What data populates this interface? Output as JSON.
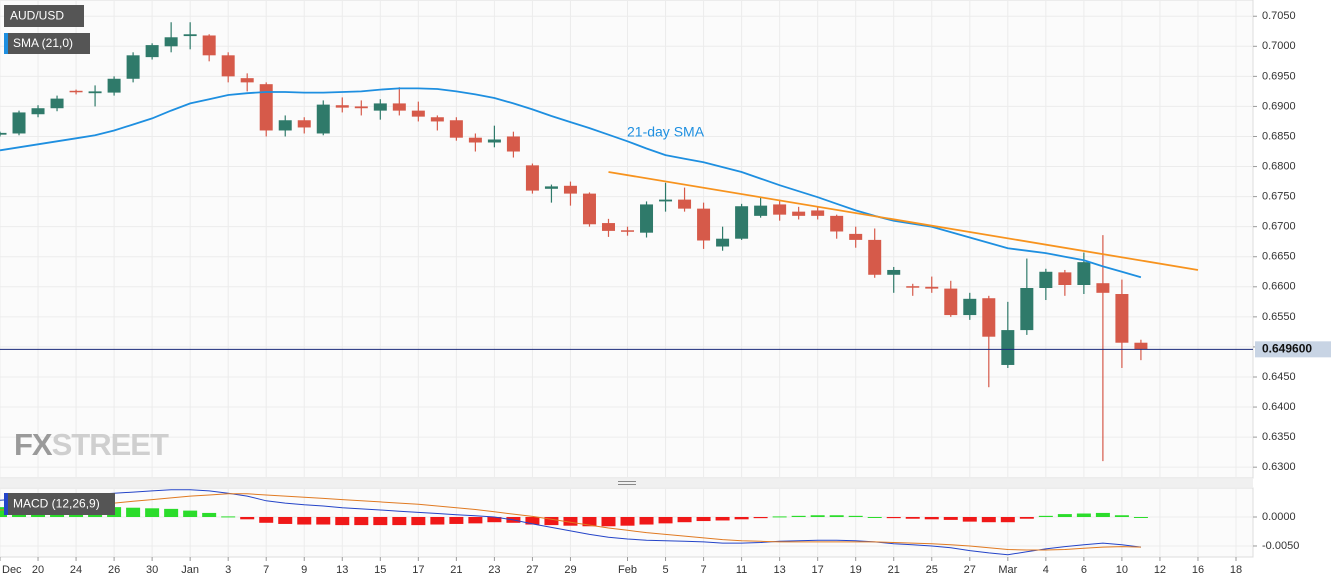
{
  "chart_data": [
    {
      "type": "candlestick",
      "categories": [
        "Dec",
        null,
        "20",
        null,
        "24",
        null,
        "26",
        null,
        "30",
        null,
        "Jan",
        null,
        "3",
        null,
        "7",
        null,
        "9",
        null,
        "13",
        null,
        "15",
        null,
        "17",
        null,
        "21",
        null,
        "23",
        null,
        "27",
        null,
        "29",
        null,
        null,
        "Feb",
        null,
        "5",
        null,
        "7",
        null,
        "11",
        null,
        "13",
        null,
        "17",
        null,
        "19",
        null,
        "21",
        null,
        "25",
        null,
        "27",
        null,
        "Mar",
        null,
        "4",
        null,
        "6",
        null,
        "10",
        null,
        "12",
        null,
        "16",
        null,
        "18"
      ],
      "series": [
        {
          "name": "AUD/USD",
          "up_color": "#2f7a6a",
          "down_color": "#d65a4a",
          "open": [
            0.6853,
            0.6855,
            0.6887,
            0.6897,
            0.6926,
            0.6922,
            0.6923,
            0.6946,
            0.6982,
            0.7,
            0.7017,
            0.7018,
            0.6985,
            0.6947,
            0.6937,
            0.686,
            0.6877,
            0.6855,
            0.6902,
            0.69,
            0.6893,
            0.6905,
            0.6893,
            0.6882,
            0.6877,
            0.6848,
            0.684,
            0.685,
            0.6802,
            0.6763,
            0.6768,
            0.6755,
            0.6706,
            0.6694,
            0.669,
            0.6742,
            0.6745,
            0.673,
            0.6667,
            0.668,
            0.6718,
            0.6737,
            0.6725,
            0.6727,
            0.6718,
            0.6688,
            0.6678,
            0.662,
            0.6601,
            0.66,
            0.6597,
            0.6553,
            0.6581,
            0.647,
            0.6528,
            0.6598,
            0.6624,
            0.6603,
            0.6606,
            0.6588,
            0.6507,
            null,
            null,
            null,
            null,
            null
          ],
          "high": [
            0.6858,
            0.6893,
            0.6902,
            0.6918,
            0.6928,
            0.6935,
            0.695,
            0.699,
            0.7005,
            0.704,
            0.704,
            0.702,
            0.699,
            0.6955,
            0.694,
            0.6885,
            0.6882,
            0.691,
            0.6915,
            0.691,
            0.6912,
            0.6932,
            0.6908,
            0.6885,
            0.6882,
            0.6855,
            0.6868,
            0.6858,
            0.6805,
            0.677,
            0.6775,
            0.6757,
            0.6713,
            0.67,
            0.6742,
            0.6773,
            0.6765,
            0.674,
            0.67,
            0.6738,
            0.675,
            0.6745,
            0.6733,
            0.6733,
            0.672,
            0.67,
            0.6697,
            0.6633,
            0.6605,
            0.6617,
            0.661,
            0.659,
            0.6585,
            0.6575,
            0.6647,
            0.663,
            0.6628,
            0.6657,
            0.6686,
            0.6612,
            0.6512,
            null,
            null,
            null,
            null,
            null
          ],
          "low": [
            0.685,
            0.6852,
            0.6882,
            0.6892,
            0.692,
            0.69,
            0.6918,
            0.694,
            0.6978,
            0.699,
            0.6995,
            0.6975,
            0.694,
            0.6925,
            0.685,
            0.685,
            0.6855,
            0.6852,
            0.689,
            0.6885,
            0.6878,
            0.6885,
            0.6875,
            0.686,
            0.6843,
            0.6825,
            0.6832,
            0.6815,
            0.6755,
            0.674,
            0.6735,
            0.67,
            0.6683,
            0.6685,
            0.6682,
            0.6725,
            0.6725,
            0.6663,
            0.666,
            0.6678,
            0.6715,
            0.671,
            0.6712,
            0.6712,
            0.668,
            0.6665,
            0.6615,
            0.659,
            0.6585,
            0.659,
            0.655,
            0.6545,
            0.6433,
            0.6465,
            0.652,
            0.6578,
            0.6585,
            0.6588,
            0.631,
            0.6465,
            0.6478,
            null,
            null,
            null,
            null,
            null
          ],
          "close": [
            0.6856,
            0.689,
            0.6897,
            0.6913,
            0.6924,
            0.6925,
            0.6946,
            0.6985,
            0.7002,
            0.7015,
            0.702,
            0.6985,
            0.695,
            0.694,
            0.686,
            0.6877,
            0.6865,
            0.6903,
            0.6898,
            0.6897,
            0.6905,
            0.6893,
            0.6883,
            0.6875,
            0.6848,
            0.684,
            0.6845,
            0.6825,
            0.676,
            0.6767,
            0.6755,
            0.6704,
            0.6693,
            0.6692,
            0.6737,
            0.6745,
            0.673,
            0.6677,
            0.668,
            0.6734,
            0.6735,
            0.672,
            0.6718,
            0.6718,
            0.6692,
            0.6678,
            0.662,
            0.6628,
            0.66,
            0.6597,
            0.6553,
            0.658,
            0.6517,
            0.6528,
            0.6598,
            0.6625,
            0.6603,
            0.6641,
            0.659,
            0.6507,
            0.6496,
            null,
            null,
            null,
            null,
            null
          ]
        },
        {
          "name": "SMA (21,0)",
          "color": "#1e8fe0",
          "values": [
            0.6827,
            0.6832,
            0.6837,
            0.6842,
            0.6847,
            0.6852,
            0.686,
            0.687,
            0.688,
            0.6893,
            0.6905,
            0.6912,
            0.6919,
            0.6922,
            0.6924,
            0.6924,
            0.6923,
            0.6923,
            0.6924,
            0.6925,
            0.6928,
            0.693,
            0.693,
            0.6929,
            0.6925,
            0.692,
            0.6914,
            0.6905,
            0.6895,
            0.6884,
            0.6874,
            0.6864,
            0.6853,
            0.6842,
            0.683,
            0.6819,
            0.6813,
            0.6807,
            0.6799,
            0.6791,
            0.678,
            0.6769,
            0.6759,
            0.6749,
            0.6738,
            0.6727,
            0.6718,
            0.671,
            0.6705,
            0.67,
            0.6691,
            0.6682,
            0.6673,
            0.6664,
            0.666,
            0.6656,
            0.665,
            0.6644,
            0.6634,
            0.6625,
            0.6616,
            null,
            null,
            null,
            null,
            null
          ]
        }
      ],
      "annotation": "21-day SMA",
      "trendline": {
        "x": [
          32,
          63
        ],
        "values": [
          0.6791,
          0.6628
        ],
        "color": "#f7931e"
      },
      "current_price": {
        "value": 0.6496,
        "label": "0.649600"
      },
      "watermark": [
        "FX",
        "STREET"
      ],
      "ylim": [
        0.6282,
        0.7077
      ],
      "yticks": [
        {
          "value": 0.63,
          "label": "0.6300"
        },
        {
          "value": 0.635,
          "label": "0.6350"
        },
        {
          "value": 0.64,
          "label": "0.6400"
        },
        {
          "value": 0.645,
          "label": "0.6450"
        },
        {
          "value": 0.65,
          "label": "0.6500"
        },
        {
          "value": 0.655,
          "label": "0.6550"
        },
        {
          "value": 0.66,
          "label": "0.6600"
        },
        {
          "value": 0.665,
          "label": "0.6650"
        },
        {
          "value": 0.67,
          "label": "0.6700"
        },
        {
          "value": 0.675,
          "label": "0.6750"
        },
        {
          "value": 0.68,
          "label": "0.6800"
        },
        {
          "value": 0.685,
          "label": "0.6850"
        },
        {
          "value": 0.69,
          "label": "0.6900"
        },
        {
          "value": 0.695,
          "label": "0.6950"
        },
        {
          "value": 0.7,
          "label": "0.7000"
        },
        {
          "value": 0.705,
          "label": "0.7050"
        }
      ],
      "grid": true
    },
    {
      "type": "macd",
      "title": "MACD (12,26,9)",
      "series": [
        {
          "color": "#2444c8",
          "values": [
            0.0029,
            0.0031,
            0.0033,
            0.0035,
            0.0037,
            0.0039,
            0.0041,
            0.0043,
            0.0045,
            0.0047,
            0.0047,
            0.0045,
            0.0041,
            0.0036,
            0.0028,
            0.0024,
            0.0021,
            0.0019,
            0.0016,
            0.0014,
            0.0012,
            0.001,
            0.0008,
            0.0006,
            0.0004,
            0.0002,
            0.0,
            -0.0005,
            -0.0012,
            -0.0018,
            -0.0024,
            -0.003,
            -0.0035,
            -0.0038,
            -0.004,
            -0.0041,
            -0.0042,
            -0.0043,
            -0.0045,
            -0.0045,
            -0.0044,
            -0.0042,
            -0.0041,
            -0.004,
            -0.004,
            -0.0041,
            -0.0043,
            -0.0046,
            -0.0048,
            -0.005,
            -0.0053,
            -0.0058,
            -0.0062,
            -0.0065,
            -0.006,
            -0.0055,
            -0.0051,
            -0.0048,
            -0.0045,
            -0.0048,
            -0.0052,
            null,
            null,
            null,
            null,
            null
          ]
        },
        {
          "color": "#e07a22",
          "values": [
            0.0012,
            0.0014,
            0.0016,
            0.0018,
            0.002,
            0.0022,
            0.0024,
            0.0027,
            0.003,
            0.0033,
            0.0036,
            0.0038,
            0.004,
            0.004,
            0.0038,
            0.0036,
            0.0034,
            0.0032,
            0.003,
            0.0028,
            0.0026,
            0.0024,
            0.0022,
            0.0019,
            0.0016,
            0.0013,
            0.0009,
            0.0005,
            0.0001,
            -0.0004,
            -0.0009,
            -0.0014,
            -0.0019,
            -0.0023,
            -0.0027,
            -0.003,
            -0.0033,
            -0.0036,
            -0.0039,
            -0.0041,
            -0.0042,
            -0.0043,
            -0.0043,
            -0.0043,
            -0.0043,
            -0.0043,
            -0.0043,
            -0.0044,
            -0.0045,
            -0.0046,
            -0.0048,
            -0.005,
            -0.0053,
            -0.0056,
            -0.0057,
            -0.0057,
            -0.0056,
            -0.0054,
            -0.0052,
            -0.0051,
            -0.0052,
            null,
            null,
            null,
            null,
            null
          ]
        }
      ],
      "histogram": {
        "pos_color": "#2bdc2b",
        "neg_color": "#f01818",
        "values": [
          0.0017,
          0.0017,
          0.0017,
          0.0017,
          0.0017,
          0.0017,
          0.0017,
          0.0016,
          0.0015,
          0.0014,
          0.0011,
          0.0007,
          0.0001,
          -0.0004,
          -0.001,
          -0.0012,
          -0.0013,
          -0.0013,
          -0.0014,
          -0.0014,
          -0.0014,
          -0.0014,
          -0.0014,
          -0.0013,
          -0.0012,
          -0.0011,
          -0.0009,
          -0.001,
          -0.0013,
          -0.0014,
          -0.0015,
          -0.0016,
          -0.0016,
          -0.0015,
          -0.0013,
          -0.0011,
          -0.0009,
          -0.0007,
          -0.0006,
          -0.0004,
          -0.0002,
          0.0001,
          0.0002,
          0.0003,
          0.0003,
          0.0002,
          0.0,
          -0.0002,
          -0.0003,
          -0.0004,
          -0.0005,
          -0.0008,
          -0.0009,
          -0.0009,
          -0.0003,
          0.0002,
          0.0005,
          0.0006,
          0.0007,
          0.0003,
          0.0,
          null,
          null,
          null,
          null,
          null
        ]
      },
      "ylim": [
        -0.0069,
        0.005
      ],
      "yticks": [
        {
          "value": 0,
          "label": "0.0000"
        },
        {
          "value": -0.005,
          "label": "-0.0050"
        }
      ],
      "grid": true
    }
  ]
}
